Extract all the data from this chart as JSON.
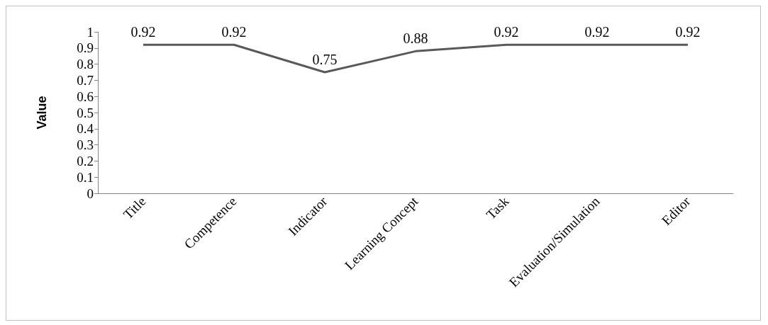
{
  "chart_data": {
    "type": "line",
    "ylabel": "Value",
    "categories": [
      "Title",
      "Competence",
      "Indicator",
      "Learning Concept",
      "Task",
      "Evaluation/Simulation",
      "Editor"
    ],
    "series": [
      {
        "color": "#595959",
        "values": [
          0.92,
          0.92,
          0.75,
          0.88,
          0.92,
          0.92,
          0.92
        ]
      }
    ],
    "ylim": [
      0,
      1
    ],
    "yticks": [
      0,
      0.1,
      0.2,
      0.3,
      0.4,
      0.5,
      0.6,
      0.7,
      0.8,
      0.9,
      1
    ],
    "data_labels": true,
    "grid": false,
    "marker": "none",
    "line_style": "solid"
  }
}
